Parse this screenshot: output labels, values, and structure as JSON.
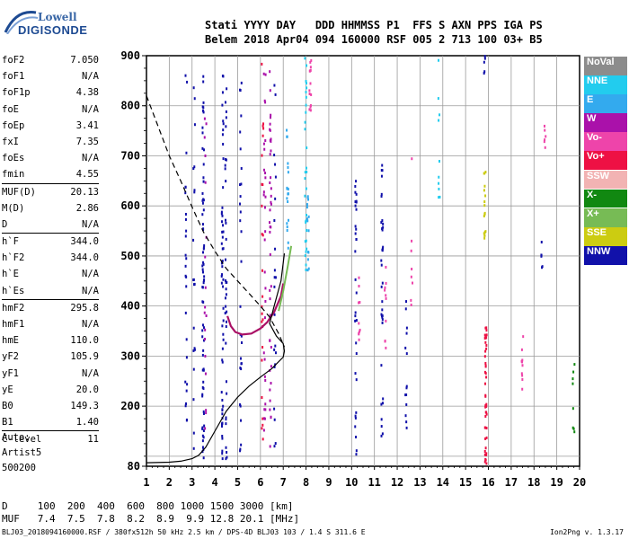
{
  "logo": {
    "line1": "Lowell",
    "line2": "DIGISONDE"
  },
  "header": {
    "line1": "Stati YYYY DAY   DDD HHMMSS P1  FFS S AXN PPS IGA PS",
    "line2": "Belem 2018 Apr04 094 160000 RSF 005 2 713 100 03+ B5"
  },
  "params": [
    {
      "label": "foF2",
      "value": "7.050"
    },
    {
      "label": "foF1",
      "value": "N/A"
    },
    {
      "label": "foF1p",
      "value": "4.38"
    },
    {
      "label": "foE",
      "value": "N/A"
    },
    {
      "label": "foEp",
      "value": "3.41"
    },
    {
      "label": "fxI",
      "value": "7.35"
    },
    {
      "label": "foEs",
      "value": "N/A"
    },
    {
      "label": "fmin",
      "value": "4.55"
    },
    {
      "label": "MUF(D)",
      "value": "20.13"
    },
    {
      "label": "M(D)",
      "value": "2.86"
    },
    {
      "label": "D",
      "value": "N/A"
    },
    {
      "label": "h`F",
      "value": "344.0"
    },
    {
      "label": "h`F2",
      "value": "344.0"
    },
    {
      "label": "h`E",
      "value": "N/A"
    },
    {
      "label": "h`Es",
      "value": "N/A"
    },
    {
      "label": "hmF2",
      "value": "295.8"
    },
    {
      "label": "hmF1",
      "value": "N/A"
    },
    {
      "label": "hmE",
      "value": "110.0"
    },
    {
      "label": "yF2",
      "value": "105.9"
    },
    {
      "label": "yF1",
      "value": "N/A"
    },
    {
      "label": "yE",
      "value": "20.0"
    },
    {
      "label": "B0",
      "value": "149.3"
    },
    {
      "label": "B1",
      "value": "1.40"
    },
    {
      "label": "C-level",
      "value": "11"
    }
  ],
  "auto": {
    "line1": "Auto:",
    "line2": "Artist5",
    "line3": "500200"
  },
  "legend": [
    {
      "label": "NoVal",
      "color": "#8c8c8c"
    },
    {
      "label": "NNE",
      "color": "#22ccee"
    },
    {
      "label": "E",
      "color": "#33aaee"
    },
    {
      "label": "W",
      "color": "#aa11aa"
    },
    {
      "label": "Vo-",
      "color": "#ee44aa"
    },
    {
      "label": "Vo+",
      "color": "#ee1144"
    },
    {
      "label": "SSW",
      "color": "#f2b3b3"
    },
    {
      "label": "X-",
      "color": "#118811"
    },
    {
      "label": "X+",
      "color": "#77bb55"
    },
    {
      "label": "SSE",
      "color": "#cccc11"
    },
    {
      "label": "NNW",
      "color": "#1111aa"
    }
  ],
  "muf_table": {
    "d_row": "D     100  200  400  600  800 1000 1500 3000 [km]",
    "muf_row": "MUF   7.4  7.5  7.8  8.2  8.9  9.9 12.8 20.1 [MHz]"
  },
  "footer": "BLJ03_2018094160000.RSF / 380fx512h 50 kHz 2.5 km / DPS-4D BLJ03 103 / 1.4 S 311.6 E",
  "version": "Ion2Png v. 1.3.17",
  "chart_data": {
    "type": "scatter",
    "x_ticks": [
      "1",
      "2",
      "3",
      "4",
      "5",
      "6",
      "7",
      "8",
      "9",
      "10",
      "11",
      "12",
      "13",
      "14",
      "15",
      "16",
      "17",
      "18",
      "19",
      "20"
    ],
    "y_ticks": [
      "80",
      "200",
      "300",
      "400",
      "500",
      "600",
      "700",
      "800",
      "900"
    ],
    "xlim": [
      1,
      20
    ],
    "ylim": [
      80,
      900
    ],
    "x_unit": "MHz",
    "y_unit": "km",
    "grid": true,
    "legend_position": "right",
    "profile_curve": [
      [
        1.0,
        87
      ],
      [
        2.0,
        88
      ],
      [
        2.5,
        90
      ],
      [
        3.0,
        95
      ],
      [
        3.3,
        102
      ],
      [
        3.6,
        118
      ],
      [
        4.0,
        150
      ],
      [
        4.5,
        190
      ],
      [
        5.0,
        218
      ],
      [
        5.5,
        240
      ],
      [
        6.0,
        258
      ],
      [
        6.5,
        275
      ],
      [
        7.0,
        298
      ],
      [
        7.05,
        310
      ],
      [
        7.0,
        325
      ],
      [
        6.7,
        340
      ],
      [
        6.4,
        365
      ],
      [
        6.6,
        400
      ],
      [
        6.9,
        450
      ],
      [
        7.05,
        505
      ]
    ],
    "topside_curve": [
      [
        1.0,
        820
      ],
      [
        1.5,
        760
      ],
      [
        2.0,
        700
      ],
      [
        2.5,
        650
      ],
      [
        3.0,
        598
      ],
      [
        3.5,
        548
      ],
      [
        4.0,
        510
      ],
      [
        4.5,
        475
      ],
      [
        5.0,
        450
      ],
      [
        5.5,
        425
      ],
      [
        6.0,
        400
      ],
      [
        6.4,
        378
      ],
      [
        6.8,
        345
      ],
      [
        7.05,
        318
      ]
    ],
    "f2_trace": [
      [
        4.55,
        380
      ],
      [
        4.7,
        360
      ],
      [
        4.9,
        348
      ],
      [
        5.2,
        343
      ],
      [
        5.6,
        345
      ],
      [
        6.0,
        355
      ],
      [
        6.3,
        368
      ],
      [
        6.6,
        388
      ],
      [
        6.9,
        420
      ],
      [
        7.0,
        445
      ]
    ],
    "x_trace": [
      [
        6.8,
        390
      ],
      [
        7.0,
        430
      ],
      [
        7.2,
        480
      ],
      [
        7.35,
        520
      ]
    ],
    "echo_columns": [
      {
        "x": 2.7,
        "y0": 110,
        "y1": 895,
        "color": "#1111aa",
        "n": 26
      },
      {
        "x": 3.05,
        "y0": 110,
        "y1": 870,
        "color": "#1111aa",
        "n": 20
      },
      {
        "x": 3.45,
        "y0": 90,
        "y1": 880,
        "color": "#1111aa",
        "n": 70
      },
      {
        "x": 3.55,
        "y0": 90,
        "y1": 850,
        "color": "#aa11aa",
        "n": 18
      },
      {
        "x": 4.3,
        "y0": 95,
        "y1": 890,
        "color": "#1111aa",
        "n": 55
      },
      {
        "x": 4.45,
        "y0": 95,
        "y1": 860,
        "color": "#1111aa",
        "n": 35
      },
      {
        "x": 5.1,
        "y0": 100,
        "y1": 870,
        "color": "#1111aa",
        "n": 30
      },
      {
        "x": 6.05,
        "y0": 100,
        "y1": 890,
        "color": "#ee1144",
        "n": 25
      },
      {
        "x": 6.15,
        "y0": 100,
        "y1": 880,
        "color": "#aa11aa",
        "n": 30
      },
      {
        "x": 6.4,
        "y0": 100,
        "y1": 890,
        "color": "#aa11aa",
        "n": 40
      },
      {
        "x": 6.6,
        "y0": 100,
        "y1": 860,
        "color": "#1111aa",
        "n": 22
      },
      {
        "x": 7.15,
        "y0": 500,
        "y1": 760,
        "color": "#33aaee",
        "n": 20
      },
      {
        "x": 7.95,
        "y0": 470,
        "y1": 900,
        "color": "#22ccee",
        "n": 30
      },
      {
        "x": 8.05,
        "y0": 470,
        "y1": 620,
        "color": "#33aaee",
        "n": 14
      },
      {
        "x": 8.15,
        "y0": 780,
        "y1": 900,
        "color": "#ee44aa",
        "n": 14
      },
      {
        "x": 10.15,
        "y0": 100,
        "y1": 660,
        "color": "#1111aa",
        "n": 32
      },
      {
        "x": 10.3,
        "y0": 330,
        "y1": 460,
        "color": "#ee44aa",
        "n": 10
      },
      {
        "x": 11.3,
        "y0": 95,
        "y1": 690,
        "color": "#1111aa",
        "n": 36
      },
      {
        "x": 11.45,
        "y0": 310,
        "y1": 480,
        "color": "#ee44aa",
        "n": 10
      },
      {
        "x": 12.35,
        "y0": 150,
        "y1": 430,
        "color": "#1111aa",
        "n": 14
      },
      {
        "x": 12.6,
        "y0": 400,
        "y1": 700,
        "color": "#ee44aa",
        "n": 8
      },
      {
        "x": 13.8,
        "y0": 600,
        "y1": 900,
        "color": "#22ccee",
        "n": 10
      },
      {
        "x": 15.85,
        "y0": 85,
        "y1": 360,
        "color": "#ee1144",
        "n": 45
      },
      {
        "x": 15.8,
        "y0": 520,
        "y1": 700,
        "color": "#cccc11",
        "n": 18
      },
      {
        "x": 15.8,
        "y0": 840,
        "y1": 900,
        "color": "#1111aa",
        "n": 5
      },
      {
        "x": 17.45,
        "y0": 220,
        "y1": 340,
        "color": "#ee44aa",
        "n": 10
      },
      {
        "x": 18.3,
        "y0": 470,
        "y1": 530,
        "color": "#1111aa",
        "n": 6
      },
      {
        "x": 18.45,
        "y0": 690,
        "y1": 760,
        "color": "#ee44aa",
        "n": 6
      },
      {
        "x": 19.7,
        "y0": 120,
        "y1": 350,
        "color": "#118811",
        "n": 8
      }
    ]
  }
}
